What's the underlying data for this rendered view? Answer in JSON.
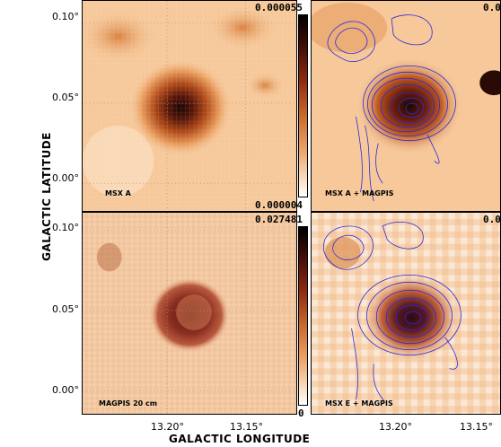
{
  "axes": {
    "xlabel": "GALACTIC LONGITUDE",
    "ylabel": "GALACTIC LATITUDE",
    "y_ticks": [
      "0.10°",
      "0.05°",
      "0.00°"
    ],
    "x_ticks": [
      "13.20°",
      "13.15°"
    ]
  },
  "panels": [
    {
      "label": "MSX A",
      "max_value": "0.000055",
      "min_value": "0.000004"
    },
    {
      "label": "MSX A + MAGPIS",
      "max_value": "0.0"
    },
    {
      "label": "MAGPIS 20 cm",
      "max_value": "0.027481",
      "min_value": "0"
    },
    {
      "label": "MSX E + MAGPIS",
      "max_value": "0.0"
    }
  ],
  "colors": {
    "background_map": "#f6c89a",
    "peak": "#2a0a05",
    "contour": "#2a2adc",
    "grid": "#b09070"
  }
}
